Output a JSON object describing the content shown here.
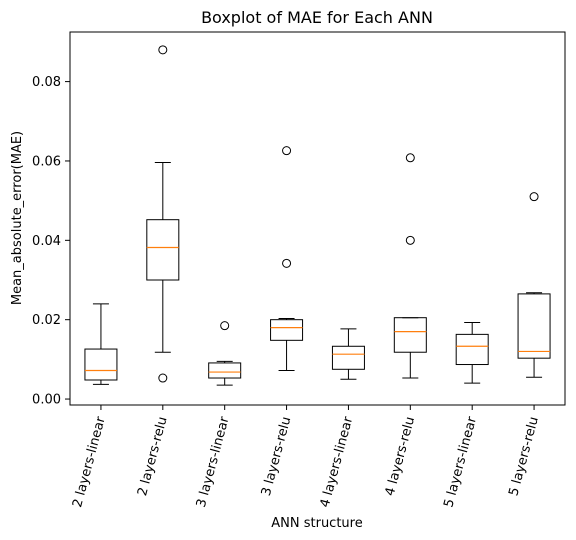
{
  "chart_data": {
    "type": "boxplot",
    "title": "Boxplot of MAE for Each ANN",
    "xlabel": "ANN structure",
    "ylabel": "Mean_absolute_error(MAE)",
    "ylim": [
      -0.0015,
      0.0925
    ],
    "yticks": [
      0.0,
      0.02,
      0.04,
      0.06,
      0.08
    ],
    "ytick_labels": [
      "0.00",
      "0.02",
      "0.04",
      "0.06",
      "0.08"
    ],
    "grid": false,
    "legend": "none",
    "categories": [
      "2 layers-linear",
      "2 layers-relu",
      "3 layers-linear",
      "3 layers-relu",
      "4 layers-linear",
      "4 layers-relu",
      "5 layers-linear",
      "5 layers-relu"
    ],
    "boxes": [
      {
        "whisker_low": 0.0037,
        "q1": 0.0048,
        "median": 0.0072,
        "q3": 0.0126,
        "whisker_high": 0.024,
        "outliers": []
      },
      {
        "whisker_low": 0.0118,
        "q1": 0.03,
        "median": 0.0382,
        "q3": 0.0452,
        "whisker_high": 0.0596,
        "outliers": [
          0.0053,
          0.088
        ]
      },
      {
        "whisker_low": 0.0035,
        "q1": 0.0053,
        "median": 0.0068,
        "q3": 0.0091,
        "whisker_high": 0.0095,
        "outliers": [
          0.0185
        ]
      },
      {
        "whisker_low": 0.0072,
        "q1": 0.0148,
        "median": 0.018,
        "q3": 0.02,
        "whisker_high": 0.0203,
        "outliers": [
          0.0342,
          0.0626
        ]
      },
      {
        "whisker_low": 0.005,
        "q1": 0.0075,
        "median": 0.0113,
        "q3": 0.0133,
        "whisker_high": 0.0177,
        "outliers": []
      },
      {
        "whisker_low": 0.0053,
        "q1": 0.0118,
        "median": 0.017,
        "q3": 0.0205,
        "whisker_high": 0.0205,
        "outliers": [
          0.04,
          0.0608
        ]
      },
      {
        "whisker_low": 0.004,
        "q1": 0.0087,
        "median": 0.0133,
        "q3": 0.0163,
        "whisker_high": 0.0193,
        "outliers": []
      },
      {
        "whisker_low": 0.0055,
        "q1": 0.0103,
        "median": 0.012,
        "q3": 0.0265,
        "whisker_high": 0.0268,
        "outliers": [
          0.051
        ]
      }
    ],
    "colors": {
      "box": "#000000",
      "median": "#ff7f0e",
      "outlier": "#000000",
      "background": "#ffffff"
    }
  }
}
